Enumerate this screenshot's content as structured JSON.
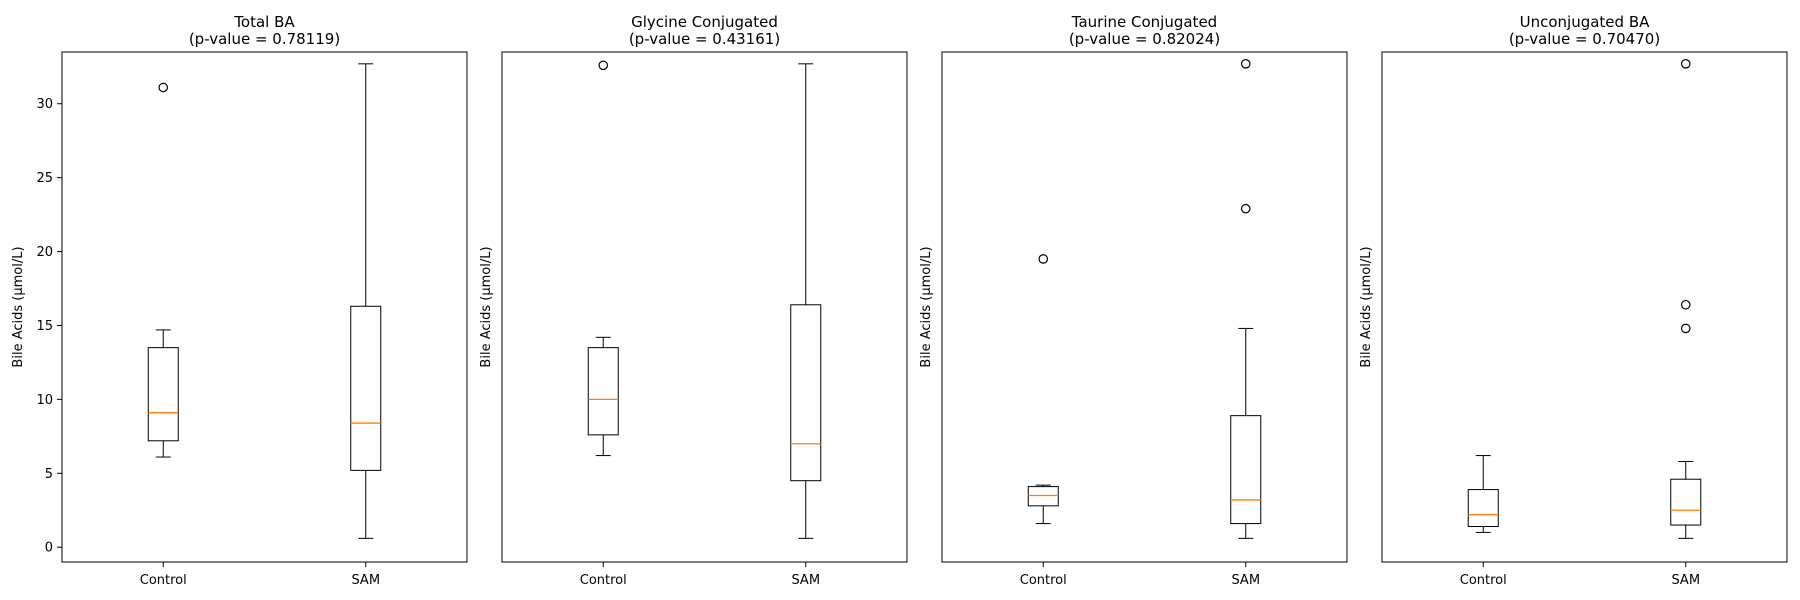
{
  "chart_data": [
    {
      "type": "box",
      "title": "Total BA",
      "subtitle": "(p-value = 0.78119)",
      "ylabel": "Bile Acids (μmol/L)",
      "categories": [
        "Control",
        "SAM"
      ],
      "ylim": [
        -1,
        33.5
      ],
      "yticks": [
        0,
        5,
        10,
        15,
        20,
        25,
        30
      ],
      "show_yticks": true,
      "boxes": [
        {
          "category": "Control",
          "whisker_low": 6.1,
          "q1": 7.2,
          "median": 9.1,
          "q3": 13.5,
          "whisker_high": 14.7,
          "outliers": [
            31.1
          ]
        },
        {
          "category": "SAM",
          "whisker_low": 0.6,
          "q1": 5.2,
          "median": 8.4,
          "q3": 16.3,
          "whisker_high": 32.7,
          "outliers": []
        }
      ]
    },
    {
      "type": "box",
      "title": "Glycine Conjugated",
      "subtitle": "(p-value = 0.43161)",
      "ylabel": "Bile Acids (μmol/L)",
      "categories": [
        "Control",
        "SAM"
      ],
      "ylim": [
        -1,
        33.5
      ],
      "yticks": [],
      "show_yticks": false,
      "boxes": [
        {
          "category": "Control",
          "whisker_low": 6.2,
          "q1": 7.6,
          "median": 10.0,
          "q3": 13.5,
          "whisker_high": 14.2,
          "outliers": [
            32.6
          ]
        },
        {
          "category": "SAM",
          "whisker_low": 0.6,
          "q1": 4.5,
          "median": 7.0,
          "q3": 16.4,
          "whisker_high": 32.7,
          "outliers": []
        }
      ]
    },
    {
      "type": "box",
      "title": "Taurine Conjugated",
      "subtitle": "(p-value = 0.82024)",
      "ylabel": "Bile Acids (μmol/L)",
      "categories": [
        "Control",
        "SAM"
      ],
      "ylim": [
        -1,
        33.5
      ],
      "yticks": [],
      "show_yticks": false,
      "boxes": [
        {
          "category": "Control",
          "whisker_low": 1.6,
          "q1": 2.8,
          "median": 3.5,
          "q3": 4.1,
          "whisker_high": 4.2,
          "outliers": [
            19.5
          ]
        },
        {
          "category": "SAM",
          "whisker_low": 0.6,
          "q1": 1.6,
          "median": 3.2,
          "q3": 8.9,
          "whisker_high": 14.8,
          "outliers": [
            22.9,
            32.7
          ]
        }
      ]
    },
    {
      "type": "box",
      "title": "Unconjugated BA",
      "subtitle": "(p-value = 0.70470)",
      "ylabel": "Bile Acids (μmol/L)",
      "categories": [
        "Control",
        "SAM"
      ],
      "ylim": [
        -1,
        33.5
      ],
      "yticks": [],
      "show_yticks": false,
      "boxes": [
        {
          "category": "Control",
          "whisker_low": 1.0,
          "q1": 1.4,
          "median": 2.2,
          "q3": 3.9,
          "whisker_high": 6.2,
          "outliers": []
        },
        {
          "category": "SAM",
          "whisker_low": 0.6,
          "q1": 1.5,
          "median": 2.5,
          "q3": 4.6,
          "whisker_high": 5.8,
          "outliers": [
            14.8,
            16.4,
            32.7
          ]
        }
      ]
    }
  ],
  "colors": {
    "box": "#000000",
    "median": "#ff7f0e",
    "background": "#ffffff"
  }
}
